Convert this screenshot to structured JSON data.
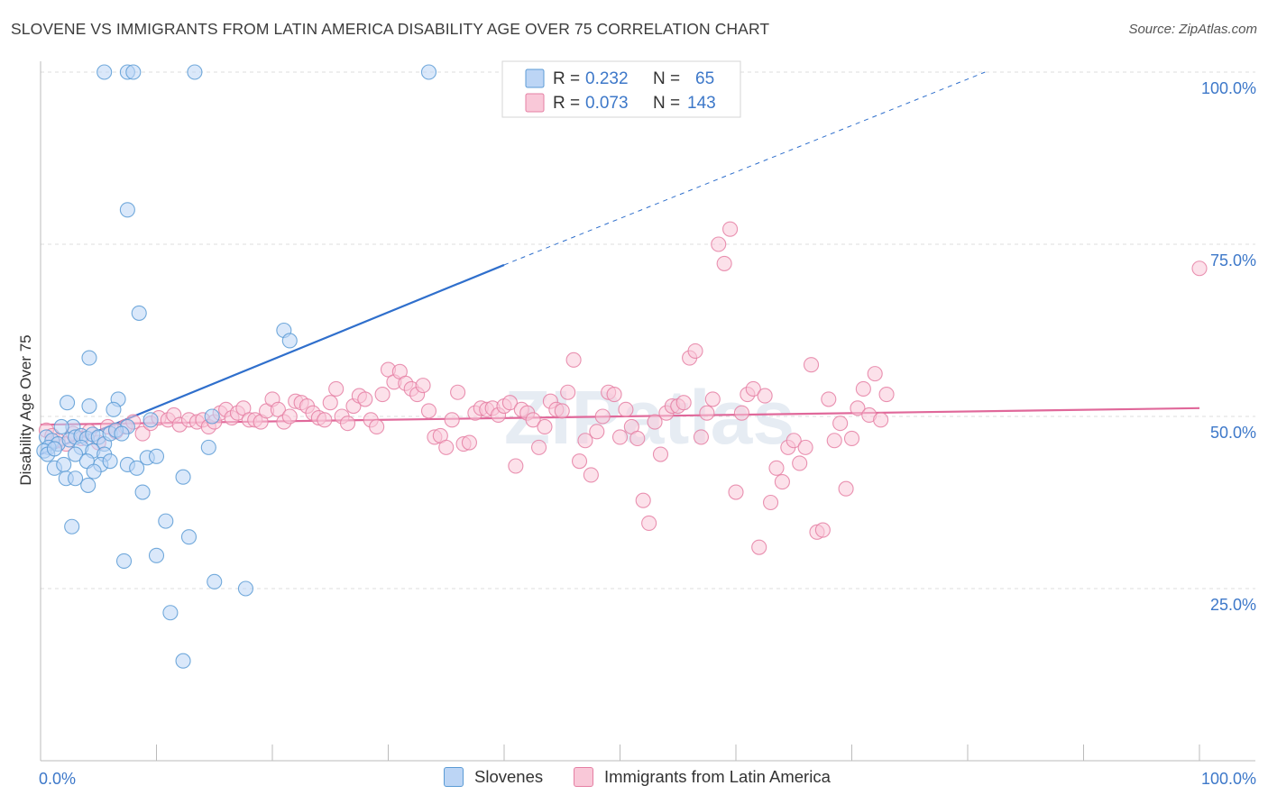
{
  "title": "SLOVENE VS IMMIGRANTS FROM LATIN AMERICA DISABILITY AGE OVER 75 CORRELATION CHART",
  "source": "Source: ZipAtlas.com",
  "watermark": "ZIPatlas",
  "colors": {
    "blue": "#5b9bd5",
    "blue_fill": "#bcd5f5",
    "blue_line": "#2f6fcc",
    "pink": "#e57fa3",
    "pink_fill": "#f9c8d8",
    "pink_line": "#e0689a",
    "axis_label": "#3d78c9",
    "grid": "#dcdcdc"
  },
  "legend_top": [
    {
      "r_label": "R = ",
      "r_value": "0.232",
      "n_label": "N = ",
      "n_value": "65",
      "color": "blue"
    },
    {
      "r_label": "R = ",
      "r_value": "0.073",
      "n_label": "N = ",
      "n_value": "143",
      "color": "pink"
    }
  ],
  "chart_data": {
    "type": "scatter",
    "xlabel": "",
    "ylabel": "Disability Age Over 75",
    "x_tick_labels": [
      "0.0%",
      "100.0%"
    ],
    "y_tick_labels": [
      "25.0%",
      "50.0%",
      "75.0%",
      "100.0%"
    ],
    "xlim": [
      0,
      100
    ],
    "ylim": [
      0,
      100
    ],
    "y_ticks": [
      25,
      50,
      75,
      100
    ],
    "legend_position": "bottom",
    "series": [
      {
        "name": "Slovenes",
        "color": "blue",
        "trend": {
          "x0": 0,
          "y0": 44.5,
          "x1": 40,
          "y1": 72,
          "dashed_to_x": 81.5,
          "dashed_to_y": 100
        },
        "points": [
          [
            5.5,
            100
          ],
          [
            7.5,
            100
          ],
          [
            8,
            100
          ],
          [
            13.3,
            100
          ],
          [
            33.5,
            100
          ],
          [
            7.5,
            80
          ],
          [
            8.5,
            65
          ],
          [
            21,
            62.5
          ],
          [
            21.5,
            61
          ],
          [
            4.2,
            58.5
          ],
          [
            2.3,
            52
          ],
          [
            4.2,
            51.5
          ],
          [
            6.7,
            52.5
          ],
          [
            6.3,
            51
          ],
          [
            7.5,
            48.5
          ],
          [
            2.8,
            48.5
          ],
          [
            1.8,
            48.5
          ],
          [
            0.5,
            47
          ],
          [
            1,
            46.5
          ],
          [
            1.5,
            46
          ],
          [
            0.7,
            45.5
          ],
          [
            0.3,
            45
          ],
          [
            0.6,
            44.5
          ],
          [
            1.2,
            45.3
          ],
          [
            2.5,
            46.6
          ],
          [
            3,
            47
          ],
          [
            3.5,
            47.2
          ],
          [
            4,
            46.8
          ],
          [
            4.5,
            47.4
          ],
          [
            5,
            47
          ],
          [
            5.5,
            46
          ],
          [
            6,
            47.5
          ],
          [
            6.5,
            48
          ],
          [
            7,
            47.5
          ],
          [
            9.5,
            49.5
          ],
          [
            14.8,
            50
          ],
          [
            14.5,
            45.5
          ],
          [
            3.5,
            45.5
          ],
          [
            4.5,
            45
          ],
          [
            5.5,
            44.5
          ],
          [
            9.2,
            44
          ],
          [
            10,
            44.2
          ],
          [
            3,
            44.5
          ],
          [
            4,
            43.5
          ],
          [
            5.2,
            43
          ],
          [
            6,
            43.5
          ],
          [
            7.5,
            43
          ],
          [
            1.2,
            42.5
          ],
          [
            2,
            43
          ],
          [
            2.2,
            41
          ],
          [
            3,
            41
          ],
          [
            4.1,
            40
          ],
          [
            4.6,
            42
          ],
          [
            8.3,
            42.5
          ],
          [
            12.3,
            41.2
          ],
          [
            8.8,
            39
          ],
          [
            2.7,
            34
          ],
          [
            10.8,
            34.8
          ],
          [
            12.8,
            32.5
          ],
          [
            7.2,
            29
          ],
          [
            10,
            29.8
          ],
          [
            15,
            26
          ],
          [
            17.7,
            25
          ],
          [
            11.2,
            21.5
          ],
          [
            12.3,
            14.5
          ]
        ]
      },
      {
        "name": "Immigrants from Latin America",
        "color": "pink",
        "trend": {
          "x0": 0,
          "y0": 48.8,
          "x1": 100,
          "y1": 51.2
        },
        "points": [
          [
            0.5,
            48
          ],
          [
            1,
            47.2
          ],
          [
            1.5,
            46.5
          ],
          [
            2.2,
            46
          ],
          [
            2.8,
            47.5
          ],
          [
            3.5,
            46.8
          ],
          [
            4.2,
            47.8
          ],
          [
            5,
            46.2
          ],
          [
            5.8,
            48.5
          ],
          [
            6.5,
            47.8
          ],
          [
            7.3,
            48.5
          ],
          [
            8,
            49.2
          ],
          [
            8.8,
            47.5
          ],
          [
            9.5,
            49
          ],
          [
            10.2,
            49.8
          ],
          [
            11,
            49.5
          ],
          [
            11.5,
            50.2
          ],
          [
            12,
            48.8
          ],
          [
            12.8,
            49.5
          ],
          [
            13.5,
            49.2
          ],
          [
            14,
            49.5
          ],
          [
            14.5,
            48.5
          ],
          [
            15,
            49.2
          ],
          [
            15.5,
            50.5
          ],
          [
            16,
            51
          ],
          [
            16.5,
            49.8
          ],
          [
            17,
            50.5
          ],
          [
            17.5,
            51.2
          ],
          [
            18,
            49.5
          ],
          [
            18.5,
            49.5
          ],
          [
            19,
            49.2
          ],
          [
            19.5,
            50.8
          ],
          [
            20,
            52.5
          ],
          [
            20.5,
            51
          ],
          [
            21,
            49.2
          ],
          [
            21.5,
            50
          ],
          [
            22,
            52.2
          ],
          [
            22.5,
            52
          ],
          [
            23,
            51.5
          ],
          [
            23.5,
            50.5
          ],
          [
            24,
            49.8
          ],
          [
            24.5,
            49.5
          ],
          [
            25,
            52
          ],
          [
            25.5,
            54
          ],
          [
            26,
            50
          ],
          [
            26.5,
            49
          ],
          [
            27,
            51.5
          ],
          [
            27.5,
            53
          ],
          [
            28,
            52.5
          ],
          [
            28.5,
            49.5
          ],
          [
            29,
            48.5
          ],
          [
            29.5,
            53.2
          ],
          [
            30,
            56.8
          ],
          [
            30.5,
            55
          ],
          [
            31,
            56.5
          ],
          [
            31.5,
            54.8
          ],
          [
            32,
            54
          ],
          [
            32.5,
            53.2
          ],
          [
            33,
            54.5
          ],
          [
            33.5,
            50.8
          ],
          [
            34,
            47
          ],
          [
            34.5,
            47.2
          ],
          [
            35,
            45.5
          ],
          [
            35.5,
            49.5
          ],
          [
            36,
            53.5
          ],
          [
            36.5,
            46
          ],
          [
            37,
            46.2
          ],
          [
            37.5,
            50.5
          ],
          [
            38,
            51.2
          ],
          [
            38.5,
            51
          ],
          [
            39,
            51.2
          ],
          [
            39.5,
            50.2
          ],
          [
            40,
            51.5
          ],
          [
            40.5,
            52
          ],
          [
            41,
            42.8
          ],
          [
            41.5,
            51
          ],
          [
            42,
            50.5
          ],
          [
            42.5,
            49.5
          ],
          [
            43,
            45.5
          ],
          [
            43.5,
            48.5
          ],
          [
            44,
            52.2
          ],
          [
            44.5,
            51
          ],
          [
            45,
            50.8
          ],
          [
            45.5,
            53.5
          ],
          [
            46,
            58.2
          ],
          [
            46.5,
            43.5
          ],
          [
            47,
            46.5
          ],
          [
            47.5,
            41.5
          ],
          [
            48,
            47.8
          ],
          [
            48.5,
            50
          ],
          [
            49,
            53.5
          ],
          [
            49.5,
            53.2
          ],
          [
            50,
            47
          ],
          [
            50.5,
            51
          ],
          [
            51,
            48.5
          ],
          [
            51.5,
            46.8
          ],
          [
            52,
            37.8
          ],
          [
            52.5,
            34.5
          ],
          [
            53,
            49.2
          ],
          [
            53.5,
            44.5
          ],
          [
            54,
            50.5
          ],
          [
            54.5,
            51.5
          ],
          [
            55,
            51.5
          ],
          [
            55.5,
            52
          ],
          [
            56,
            58.5
          ],
          [
            56.5,
            59.5
          ],
          [
            57,
            47
          ],
          [
            57.5,
            50.5
          ],
          [
            58,
            52.5
          ],
          [
            58.5,
            75
          ],
          [
            59,
            72.2
          ],
          [
            59.5,
            77.2
          ],
          [
            60,
            39
          ],
          [
            60.5,
            50.5
          ],
          [
            61,
            53.2
          ],
          [
            61.5,
            54
          ],
          [
            62,
            31
          ],
          [
            62.5,
            53
          ],
          [
            63,
            37.5
          ],
          [
            63.5,
            42.5
          ],
          [
            64,
            40.5
          ],
          [
            64.5,
            45.5
          ],
          [
            65,
            46.5
          ],
          [
            65.5,
            43.2
          ],
          [
            66,
            45.5
          ],
          [
            66.5,
            57.5
          ],
          [
            67,
            33.2
          ],
          [
            67.5,
            33.5
          ],
          [
            68,
            52.5
          ],
          [
            68.5,
            46.5
          ],
          [
            69,
            49
          ],
          [
            69.5,
            39.5
          ],
          [
            70,
            46.8
          ],
          [
            70.5,
            51.2
          ],
          [
            71,
            54
          ],
          [
            71.5,
            50.2
          ],
          [
            72,
            56.2
          ],
          [
            72.5,
            49.5
          ],
          [
            73,
            53.2
          ],
          [
            100,
            71.5
          ]
        ]
      }
    ]
  }
}
